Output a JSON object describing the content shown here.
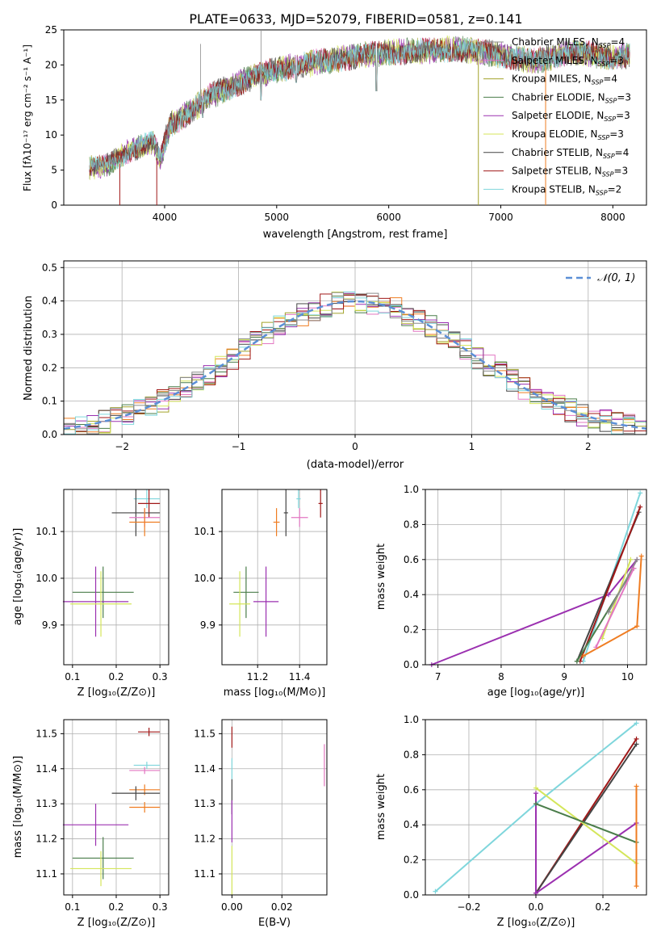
{
  "figure": {
    "title": "PLATE=0633, MJD=52079, FIBERID=0581, z=0.141"
  },
  "colors": {
    "chabrier_miles": "#8c8c8c",
    "salpeter_miles": "#e377c2",
    "kroupa_miles": "#a3a32b",
    "chabrier_elodie": "#4a7d4a",
    "salpeter_elodie": "#9b30b0",
    "kroupa_elodie": "#d4e65a",
    "chabrier_stelib": "#444444",
    "salpeter_stelib": "#a01818",
    "kroupa_stelib": "#7fd6dc",
    "orange": "#ef7d22",
    "normal_curve": "#5b8fd6"
  },
  "chart_data": [
    {
      "id": "spectrum",
      "type": "line",
      "xlabel": "wavelength [Angstrom, rest frame]",
      "ylabel": "Flux [fλ10⁻¹⁷ erg cm⁻² s⁻¹ A⁻¹]",
      "xlim": [
        3100,
        8300
      ],
      "ylim": [
        0,
        25
      ],
      "xticks": [
        "4000",
        "5000",
        "6000",
        "7000",
        "8000"
      ],
      "yticks": [
        "0",
        "5",
        "10",
        "15",
        "20",
        "25"
      ],
      "grid": false,
      "legend_position": "upper-right",
      "legend": [
        {
          "label": "Chabrier MILES, N",
          "sub": "SSP",
          "val": "=4",
          "color_key": "chabrier_miles"
        },
        {
          "label": "Salpeter MILES, N",
          "sub": "SSP",
          "val": "=3",
          "color_key": "salpeter_miles"
        },
        {
          "label": "Kroupa MILES, N",
          "sub": "SSP",
          "val": "=4",
          "color_key": "kroupa_miles"
        },
        {
          "label": "Chabrier ELODIE, N",
          "sub": "SSP",
          "val": "=3",
          "color_key": "chabrier_elodie"
        },
        {
          "label": "Salpeter ELODIE, N",
          "sub": "SSP",
          "val": "=3",
          "color_key": "salpeter_elodie"
        },
        {
          "label": "Kroupa ELODIE, N",
          "sub": "SSP",
          "val": "=3",
          "color_key": "kroupa_elodie"
        },
        {
          "label": "Chabrier STELIB, N",
          "sub": "SSP",
          "val": "=4",
          "color_key": "chabrier_stelib"
        },
        {
          "label": "Salpeter STELIB, N",
          "sub": "SSP",
          "val": "=3",
          "color_key": "salpeter_stelib"
        },
        {
          "label": "Kroupa STELIB, N",
          "sub": "SSP",
          "val": "=2",
          "color_key": "kroupa_stelib"
        }
      ],
      "continuum": [
        [
          3330,
          5.3
        ],
        [
          3500,
          5.8
        ],
        [
          3650,
          7.5
        ],
        [
          3800,
          8.5
        ],
        [
          3900,
          9.0
        ],
        [
          3960,
          6.5
        ],
        [
          4050,
          11.5
        ],
        [
          4200,
          13.0
        ],
        [
          4400,
          15.5
        ],
        [
          4600,
          17.0
        ],
        [
          4800,
          18.3
        ],
        [
          5000,
          19.3
        ],
        [
          5200,
          20.0
        ],
        [
          5500,
          20.7
        ],
        [
          5800,
          21.5
        ],
        [
          6000,
          21.8
        ],
        [
          6300,
          22.0
        ],
        [
          6600,
          22.3
        ],
        [
          7000,
          21.5
        ],
        [
          7300,
          20.5
        ],
        [
          7600,
          21.8
        ],
        [
          7800,
          21.5
        ],
        [
          8000,
          21.0
        ],
        [
          8150,
          21.5
        ]
      ],
      "absorption_dips": [
        [
          3600,
          0.0
        ],
        [
          3930,
          0.0
        ],
        [
          4100,
          10.5
        ],
        [
          4340,
          12.5
        ],
        [
          4860,
          15.0
        ],
        [
          5175,
          17.5
        ],
        [
          5890,
          16.3
        ],
        [
          6563,
          20.5
        ],
        [
          6800,
          0.0
        ],
        [
          7400,
          0.0
        ]
      ],
      "emission_spikes": [
        [
          4860,
          25.0
        ],
        [
          4320,
          23.0
        ],
        [
          3500,
          7.0
        ]
      ]
    },
    {
      "id": "residuals",
      "type": "histogram",
      "xlabel": "(data-model)/error",
      "ylabel": "Normed distribution",
      "xlim": [
        -2.5,
        2.5
      ],
      "ylim": [
        0,
        0.52
      ],
      "xticks": [
        "-2",
        "-1",
        "0",
        "1",
        "2"
      ],
      "yticks": [
        "0.0",
        "0.1",
        "0.2",
        "0.3",
        "0.4",
        "0.5"
      ],
      "grid": true,
      "legend_position": "upper-right",
      "legend_label": "𝒩(0, 1)",
      "bin_width": 0.1,
      "bin_start": -2.5,
      "normal_curve": {
        "mean": 0,
        "sigma": 1
      }
    },
    {
      "id": "age_vs_Z",
      "type": "errorbar",
      "xlabel": "Z [log₁₀(Z/Z⊙)]",
      "ylabel": "age  [log₁₀(age/yr)]",
      "xlim": [
        0.08,
        0.32
      ],
      "ylim": [
        9.815,
        10.19
      ],
      "xticks": [
        "0.1",
        "0.2",
        "0.3"
      ],
      "yticks": [
        "9.9",
        "10.0",
        "10.1"
      ],
      "grid": true,
      "points": [
        {
          "color_key": "kroupa_stelib",
          "x": 0.27,
          "y": 10.17,
          "xerr": 0.03,
          "yerr": 0.02
        },
        {
          "color_key": "salpeter_stelib",
          "x": 0.275,
          "y": 10.16,
          "xerr": 0.025,
          "yerr": 0.03
        },
        {
          "color_key": "chabrier_stelib",
          "x": 0.245,
          "y": 10.14,
          "xerr": 0.055,
          "yerr": 0.05
        },
        {
          "color_key": "salpeter_miles",
          "x": 0.265,
          "y": 10.13,
          "xerr": 0.035,
          "yerr": 0.02
        },
        {
          "color_key": "orange",
          "x": 0.265,
          "y": 10.12,
          "xerr": 0.035,
          "yerr": 0.03
        },
        {
          "color_key": "chabrier_elodie",
          "x": 0.17,
          "y": 9.97,
          "xerr": 0.07,
          "yerr": 0.055
        },
        {
          "color_key": "salpeter_elodie",
          "x": 0.153,
          "y": 9.95,
          "xerr": 0.075,
          "yerr": 0.075
        },
        {
          "color_key": "kroupa_elodie",
          "x": 0.165,
          "y": 9.945,
          "xerr": 0.07,
          "yerr": 0.07
        }
      ]
    },
    {
      "id": "age_vs_mass",
      "type": "errorbar",
      "xlabel": "mass [log₁₀(M/M⊙)]",
      "ylabel": "",
      "xlim": [
        11.03,
        11.53
      ],
      "ylim": [
        9.815,
        10.19
      ],
      "xticks": [
        "11.2",
        "11.4"
      ],
      "yticks": [
        "9.9",
        "10.0",
        "10.1"
      ],
      "grid": true,
      "points": [
        {
          "color_key": "kroupa_stelib",
          "x": 11.395,
          "y": 10.17,
          "xerr": 0.01,
          "yerr": 0.02
        },
        {
          "color_key": "salpeter_stelib",
          "x": 11.5,
          "y": 10.16,
          "xerr": 0.01,
          "yerr": 0.03
        },
        {
          "color_key": "chabrier_stelib",
          "x": 11.335,
          "y": 10.14,
          "xerr": 0.01,
          "yerr": 0.05
        },
        {
          "color_key": "salpeter_miles",
          "x": 11.4,
          "y": 10.13,
          "xerr": 0.04,
          "yerr": 0.02
        },
        {
          "color_key": "orange",
          "x": 11.29,
          "y": 10.12,
          "xerr": 0.015,
          "yerr": 0.03
        },
        {
          "color_key": "chabrier_elodie",
          "x": 11.145,
          "y": 9.97,
          "xerr": 0.06,
          "yerr": 0.055
        },
        {
          "color_key": "salpeter_elodie",
          "x": 11.24,
          "y": 9.95,
          "xerr": 0.06,
          "yerr": 0.075
        },
        {
          "color_key": "kroupa_elodie",
          "x": 11.115,
          "y": 9.945,
          "xerr": 0.05,
          "yerr": 0.07
        }
      ]
    },
    {
      "id": "massweight_vs_age",
      "type": "line",
      "xlabel": "age  [log₁₀(age/yr)]",
      "ylabel": "mass weight",
      "xlim": [
        6.8,
        10.3
      ],
      "ylim": [
        0,
        1.0
      ],
      "xticks": [
        "7",
        "8",
        "9",
        "10"
      ],
      "yticks": [
        "0.0",
        "0.2",
        "0.4",
        "0.6",
        "0.8",
        "1.0"
      ],
      "grid": true,
      "series": [
        {
          "color_key": "salpeter_elodie",
          "x": [
            6.9,
            9.7,
            10.15
          ],
          "y": [
            0.0,
            0.4,
            0.6
          ]
        },
        {
          "color_key": "kroupa_stelib",
          "x": [
            9.3,
            10.2
          ],
          "y": [
            0.02,
            0.98
          ]
        },
        {
          "color_key": "chabrier_stelib",
          "x": [
            9.2,
            10.18
          ],
          "y": [
            0.02,
            0.87
          ]
        },
        {
          "color_key": "salpeter_stelib",
          "x": [
            9.25,
            10.2
          ],
          "y": [
            0.02,
            0.9
          ]
        },
        {
          "color_key": "orange",
          "x": [
            9.3,
            10.15,
            10.22
          ],
          "y": [
            0.05,
            0.22,
            0.62
          ]
        },
        {
          "color_key": "chabrier_elodie",
          "x": [
            9.2,
            10.1
          ],
          "y": [
            0.02,
            0.55
          ]
        },
        {
          "color_key": "kroupa_elodie",
          "x": [
            9.6,
            10.05
          ],
          "y": [
            0.15,
            0.6
          ]
        },
        {
          "color_key": "chabrier_miles",
          "x": [
            9.7,
            10.15
          ],
          "y": [
            0.3,
            0.6
          ]
        },
        {
          "color_key": "salpeter_miles",
          "x": [
            9.5,
            10.1
          ],
          "y": [
            0.1,
            0.55
          ]
        }
      ]
    },
    {
      "id": "mass_vs_Z",
      "type": "errorbar",
      "xlabel": "Z [log₁₀(Z/Z⊙)]",
      "ylabel": "mass [log₁₀(M/M⊙)]",
      "xlim": [
        0.08,
        0.32
      ],
      "ylim": [
        11.04,
        11.54
      ],
      "xticks": [
        "0.1",
        "0.2",
        "0.3"
      ],
      "yticks": [
        "11.1",
        "11.2",
        "11.3",
        "11.4",
        "11.5"
      ],
      "grid": true,
      "points": [
        {
          "color_key": "salpeter_stelib",
          "x": 0.275,
          "y": 11.505,
          "xerr": 0.025,
          "yerr": 0.012
        },
        {
          "color_key": "kroupa_stelib",
          "x": 0.27,
          "y": 11.41,
          "xerr": 0.03,
          "yerr": 0.01
        },
        {
          "color_key": "salpeter_miles",
          "x": 0.265,
          "y": 11.395,
          "xerr": 0.035,
          "yerr": 0.01
        },
        {
          "color_key": "orange",
          "x": 0.265,
          "y": 11.34,
          "xerr": 0.035,
          "yerr": 0.015
        },
        {
          "color_key": "chabrier_stelib",
          "x": 0.245,
          "y": 11.33,
          "xerr": 0.055,
          "yerr": 0.02
        },
        {
          "color_key": "orange",
          "x": 0.265,
          "y": 11.29,
          "xerr": 0.035,
          "yerr": 0.015
        },
        {
          "color_key": "salpeter_elodie",
          "x": 0.153,
          "y": 11.24,
          "xerr": 0.075,
          "yerr": 0.06
        },
        {
          "color_key": "chabrier_elodie",
          "x": 0.17,
          "y": 11.145,
          "xerr": 0.07,
          "yerr": 0.06
        },
        {
          "color_key": "kroupa_elodie",
          "x": 0.165,
          "y": 11.115,
          "xerr": 0.07,
          "yerr": 0.05
        }
      ]
    },
    {
      "id": "mass_vs_ebv",
      "type": "errorbar",
      "xlabel": "E(B-V)",
      "ylabel": "",
      "xlim": [
        -0.004,
        0.038
      ],
      "ylim": [
        11.04,
        11.54
      ],
      "xticks": [
        "0.00",
        "0.02"
      ],
      "yticks": [
        "11.1",
        "11.2",
        "11.3",
        "11.4",
        "11.5"
      ],
      "grid": true,
      "points": [
        {
          "color_key": "salpeter_stelib",
          "x": 0.0,
          "y": 11.49,
          "xerr": 0,
          "yerr": 0.03
        },
        {
          "color_key": "kroupa_stelib",
          "x": 0.0,
          "y": 11.4,
          "xerr": 0,
          "yerr": 0.03
        },
        {
          "color_key": "chabrier_stelib",
          "x": 0.0,
          "y": 11.32,
          "xerr": 0,
          "yerr": 0.05
        },
        {
          "color_key": "salpeter_elodie",
          "x": 0.0,
          "y": 11.25,
          "xerr": 0,
          "yerr": 0.06
        },
        {
          "color_key": "kroupa_elodie",
          "x": 0.0,
          "y": 11.11,
          "xerr": 0,
          "yerr": 0.07
        },
        {
          "color_key": "salpeter_miles",
          "x": 0.037,
          "y": 11.41,
          "xerr": 0,
          "yerr": 0.06
        }
      ]
    },
    {
      "id": "massweight_vs_Z",
      "type": "line",
      "xlabel": "Z [log₁₀(Z/Z⊙)]",
      "ylabel": "mass weight",
      "xlim": [
        -0.33,
        0.33
      ],
      "ylim": [
        0,
        1.0
      ],
      "xticks": [
        "-0.2",
        "0.0",
        "0.2"
      ],
      "yticks": [
        "0.0",
        "0.2",
        "0.4",
        "0.6",
        "0.8",
        "1.0"
      ],
      "grid": true,
      "series": [
        {
          "color_key": "kroupa_stelib",
          "x": [
            -0.3,
            0.0,
            0.3
          ],
          "y": [
            0.02,
            0.52,
            0.98
          ]
        },
        {
          "color_key": "salpeter_stelib",
          "x": [
            0.0,
            0.3
          ],
          "y": [
            0.01,
            0.89
          ]
        },
        {
          "color_key": "chabrier_stelib",
          "x": [
            0.0,
            0.3
          ],
          "y": [
            0.01,
            0.86
          ]
        },
        {
          "color_key": "salpeter_elodie",
          "x": [
            0.0,
            0.0,
            0.3
          ],
          "y": [
            0.58,
            0.01,
            0.41
          ]
        },
        {
          "color_key": "kroupa_elodie",
          "x": [
            0.0,
            0.3
          ],
          "y": [
            0.61,
            0.18
          ]
        },
        {
          "color_key": "chabrier_elodie",
          "x": [
            0.0,
            0.3
          ],
          "y": [
            0.52,
            0.3
          ]
        },
        {
          "color_key": "orange",
          "x": [
            0.3,
            0.3
          ],
          "y": [
            0.05,
            0.62
          ]
        }
      ]
    }
  ]
}
